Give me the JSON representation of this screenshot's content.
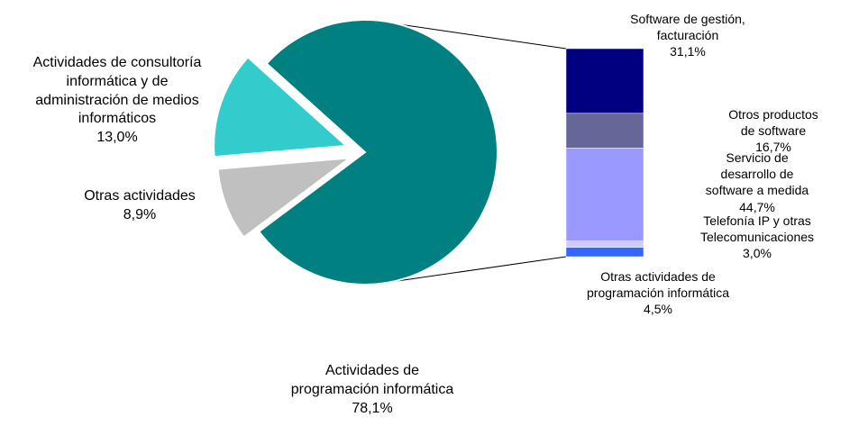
{
  "chart_data": [
    {
      "type": "pie",
      "categories": [
        "Actividades de\nprogramación informática",
        "Actividades de consultoría\ninformática y de\nadministración de medios\ninformáticos",
        "Otras actividades"
      ],
      "values": [
        78.1,
        13.0,
        8.9
      ],
      "value_labels": [
        "78,1%",
        "13,0%",
        "8,9%"
      ],
      "colors": [
        "#008080",
        "#33cccc",
        "#c0c0c0"
      ]
    },
    {
      "type": "bar",
      "categories": [
        "Software de gestión,\nfacturación",
        "Otros productos de software",
        "Servicio de desarrollo de\nsoftware a medida",
        "Telefonía IP y otras\nTelecomunicaciones",
        "Otras actividades de\nprogramación informática"
      ],
      "values": [
        31.1,
        16.7,
        44.7,
        3.0,
        4.5
      ],
      "value_labels": [
        "31,1%",
        "16,7%",
        "44,7%",
        "3,0%",
        "4,5%"
      ],
      "colors": [
        "#000080",
        "#666699",
        "#9999ff",
        "#ccccff",
        "#3366ff"
      ]
    }
  ]
}
